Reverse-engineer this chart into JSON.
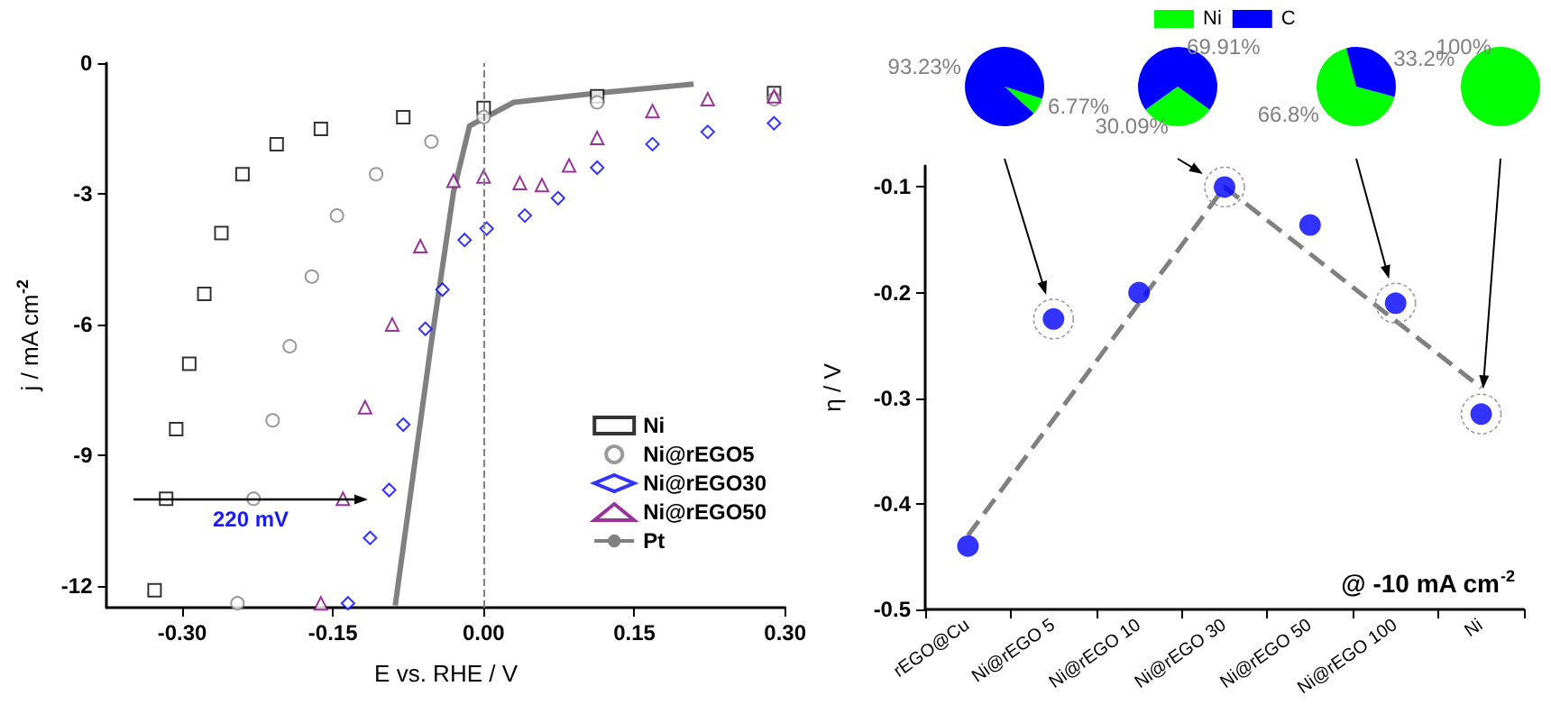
{
  "chart_data": [
    {
      "type": "scatter",
      "xlabel": "E vs. RHE / V",
      "ylabel": "j / mA cm$^{-2}$",
      "xlim": [
        -0.375,
        0.3
      ],
      "xticks": [
        {
          "value": -0.3,
          "label": "-0.30"
        },
        {
          "value": -0.15,
          "label": "-0.15"
        },
        {
          "value": 0,
          "label": "0.00"
        },
        {
          "value": 0.15,
          "label": "0.15"
        },
        {
          "value": 0.3,
          "label": "0.30"
        }
      ],
      "ylim": [
        -12.5,
        0
      ],
      "yticks": [
        0,
        -3,
        -6,
        -9,
        -12
      ],
      "grid": false,
      "legend": "bottom right",
      "series": [
        {
          "name": "Ni",
          "type": "scatter",
          "marker": "square",
          "color": "#000000",
          "x": [
            -0.3275,
            -0.316,
            -0.306,
            -0.293,
            -0.278,
            -0.261,
            -0.24,
            -0.206,
            -0.162,
            -0.08,
            0,
            0.113,
            0.289
          ],
          "values": [
            -12.1,
            -10.0,
            -8.4,
            -6.9,
            -5.3,
            -3.9,
            -2.55,
            -1.86,
            -1.51,
            -1.24,
            -1.03,
            -0.76,
            -0.69
          ]
        },
        {
          "name": "Ni@rEGO5",
          "type": "scatter",
          "marker": "circle",
          "color": "#808080",
          "x": [
            -0.245,
            -0.229,
            -0.21,
            -0.193,
            -0.171,
            -0.146,
            -0.107,
            -0.052,
            0,
            0.113,
            0.289
          ],
          "values": [
            -12.4,
            -10.0,
            -8.2,
            -6.5,
            -4.9,
            -3.5,
            -2.55,
            -1.8,
            -1.24,
            -0.9,
            -0.83
          ]
        },
        {
          "name": "Ni@rEGO30",
          "type": "scatter",
          "marker": "diamond",
          "color": "#0000ff",
          "x": [
            -0.135,
            -0.113,
            -0.094,
            -0.08,
            -0.058,
            -0.041,
            -0.019,
            0.003,
            0.041,
            0.074,
            0.113,
            0.168,
            0.223,
            0.289
          ],
          "values": [
            -12.4,
            -10.9,
            -9.8,
            -8.3,
            -6.1,
            -5.2,
            -4.06,
            -3.8,
            -3.5,
            -3.1,
            -2.4,
            -1.86,
            -1.58,
            -1.38
          ]
        },
        {
          "name": "Ni@rEGO50",
          "type": "scatter",
          "marker": "triangle",
          "color": "#800080",
          "x": [
            -0.162,
            -0.14,
            -0.118,
            -0.091,
            -0.063,
            -0.03,
            0,
            0.036,
            0.058,
            0.085,
            0.113,
            0.168,
            0.223,
            0.289
          ],
          "values": [
            -12.4,
            -10.0,
            -7.9,
            -6.0,
            -4.2,
            -2.7,
            -2.6,
            -2.75,
            -2.8,
            -2.35,
            -1.72,
            -1.1,
            -0.83,
            -0.76
          ]
        },
        {
          "name": "Pt",
          "type": "line",
          "marker": "none",
          "line_style": "solid",
          "color": "#808080",
          "x": [
            -0.088,
            -0.052,
            -0.03,
            -0.014,
            0.03,
            0.113,
            0.209
          ],
          "values": [
            -12.45,
            -6.4,
            -2.96,
            -1.44,
            -0.9,
            -0.69,
            -0.48
          ]
        }
      ],
      "ref_lines": [
        {
          "axis": "x",
          "value": 0,
          "color": "#808080",
          "line_style": "dashed"
        }
      ],
      "annotations": [
        "220 mV"
      ]
    },
    {
      "type": "pie",
      "categories": [
        "Ni",
        "C"
      ],
      "colors": [
        "#00ff00",
        "#0000ff"
      ],
      "legend": "top",
      "series": [
        {
          "values": [
            6.77,
            93.23
          ],
          "value_labels": [
            "6.77%",
            "93.23%"
          ]
        },
        {
          "values": [
            30.09,
            69.91
          ],
          "value_labels": [
            "30.09%",
            "69.91%"
          ]
        },
        {
          "values": [
            66.8,
            33.2
          ],
          "value_labels": [
            "66.8%",
            "33.2%"
          ]
        },
        {
          "values": [
            100,
            null
          ],
          "value_labels": [
            "100%",
            null
          ]
        }
      ]
    },
    {
      "type": "scatter",
      "ylabel": "η / V",
      "categories": [
        "rEGO@Cu",
        "Ni@rEGO 5",
        "Ni@rEGO 10",
        "Ni@rEGO 30",
        "Ni@rEGO 50",
        "Ni@rEGO 100",
        "Ni"
      ],
      "ylim": [
        -0.5,
        -0.08
      ],
      "yticks": [
        -0.1,
        -0.2,
        -0.3,
        -0.4,
        -0.5
      ],
      "grid": false,
      "series": [
        {
          "type": "scatter",
          "marker": "circle",
          "color": "#0000ff",
          "values": [
            -0.44,
            -0.225,
            -0.2,
            -0.1,
            -0.136,
            -0.21,
            -0.315
          ]
        },
        {
          "type": "line",
          "marker": "none",
          "line_style": "dashed",
          "color": "#808080",
          "x": [
            "rEGO@Cu",
            "Ni@rEGO 30",
            "Ni"
          ],
          "values": [
            -0.43,
            -0.1,
            -0.29
          ]
        }
      ],
      "annotations": [
        "@ -10 mA cm$^{-2}$"
      ]
    }
  ]
}
